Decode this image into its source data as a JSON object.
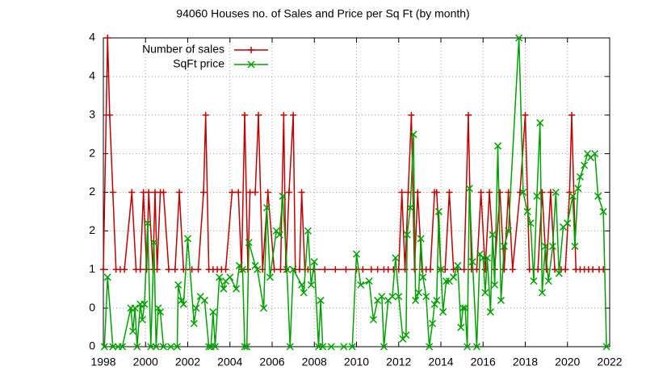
{
  "chart_data": {
    "type": "line",
    "title": "94060 Houses no. of Sales and Price per Sq Ft (by month)",
    "legend": "top-left",
    "grid": true,
    "xlim": [
      1998,
      2022
    ],
    "xticks": [
      1998,
      2000,
      2002,
      2004,
      2006,
      2008,
      2010,
      2012,
      2014,
      2016,
      2018,
      2020,
      2022
    ],
    "ylim": [
      0,
      4
    ],
    "yticks": [
      0,
      {
        "value": 0.5,
        "label": "0"
      },
      1,
      {
        "value": 1.5,
        "label": "2"
      },
      2,
      {
        "value": 2.5,
        "label": "2"
      },
      3,
      {
        "value": 3.5,
        "label": "4"
      },
      4
    ],
    "series": [
      {
        "name": "Number of sales",
        "color": "#c00000",
        "marker": "plus",
        "x": [
          1998.0,
          1998.2,
          1998.3,
          1998.45,
          1998.6,
          1998.8,
          1999.0,
          1999.35,
          1999.55,
          1999.75,
          1999.9,
          2000.05,
          2000.15,
          2000.35,
          2000.45,
          2000.55,
          2000.7,
          2000.85,
          2001.1,
          2001.4,
          2001.6,
          2001.8,
          2002.2,
          2002.5,
          2002.75,
          2002.85,
          2003.0,
          2003.2,
          2003.4,
          2003.6,
          2003.8,
          2004.1,
          2004.4,
          2004.55,
          2004.7,
          2004.85,
          2004.95,
          2005.2,
          2005.35,
          2005.55,
          2005.8,
          2006.1,
          2006.4,
          2006.55,
          2006.65,
          2006.8,
          2007.0,
          2007.1,
          2007.3,
          2007.4,
          2007.55,
          2007.7,
          2008.0,
          2008.5,
          2009.0,
          2009.5,
          2010.0,
          2010.3,
          2010.7,
          2011.0,
          2011.3,
          2011.5,
          2011.75,
          2012.0,
          2012.15,
          2012.3,
          2012.45,
          2012.6,
          2012.75,
          2012.9,
          2013.1,
          2013.3,
          2013.5,
          2013.7,
          2013.8,
          2014.0,
          2014.2,
          2014.4,
          2014.6,
          2014.8,
          2015.1,
          2015.3,
          2015.45,
          2015.7,
          2015.9,
          2016.1,
          2016.3,
          2016.55,
          2016.8,
          2017.0,
          2017.2,
          2017.4,
          2017.75,
          2018.0,
          2018.2,
          2018.4,
          2018.6,
          2018.8,
          2019.0,
          2019.2,
          2019.4,
          2019.7,
          2019.9,
          2020.1,
          2020.2,
          2020.4,
          2020.6,
          2020.8,
          2021.0,
          2021.2,
          2021.5,
          2021.7
        ],
        "values": [
          1,
          4,
          3,
          2,
          1,
          1,
          1,
          2,
          1,
          1,
          2,
          1,
          2,
          1,
          2,
          1,
          2,
          2,
          1,
          1,
          2,
          1,
          1,
          1,
          2,
          3,
          1,
          1,
          1,
          1,
          1,
          2,
          2,
          1,
          3,
          1,
          2,
          2,
          3,
          1,
          2,
          1,
          1,
          3,
          1,
          2,
          3,
          1,
          1,
          2,
          1,
          1,
          1,
          1,
          1,
          1,
          1,
          1,
          1,
          1,
          1,
          1,
          1,
          1,
          2,
          1,
          2,
          3,
          1,
          2,
          1,
          1,
          1,
          2,
          2,
          1,
          1,
          2,
          1,
          1,
          1,
          3,
          1,
          1,
          2,
          1,
          2,
          1,
          2,
          1,
          2,
          1,
          2,
          3,
          1,
          1,
          1,
          2,
          1,
          2,
          1,
          1,
          1,
          2,
          3,
          1,
          1,
          1,
          1,
          1,
          1,
          1
        ]
      },
      {
        "name": "SqFt price",
        "color": "#00a000",
        "marker": "cross",
        "x": [
          1998.05,
          1998.2,
          1998.45,
          1998.7,
          1998.9,
          1999.3,
          1999.4,
          1999.5,
          1999.6,
          1999.75,
          1999.85,
          1999.95,
          2000.1,
          2000.25,
          2000.4,
          2000.5,
          2000.6,
          2000.7,
          2000.85,
          2001.2,
          2001.5,
          2001.55,
          2001.7,
          2001.8,
          2002.0,
          2002.3,
          2002.4,
          2002.6,
          2002.8,
          2003.0,
          2003.1,
          2003.2,
          2003.3,
          2003.5,
          2003.7,
          2003.8,
          2004.0,
          2004.3,
          2004.45,
          2004.6,
          2004.7,
          2004.8,
          2004.9,
          2005.2,
          2005.3,
          2005.6,
          2005.75,
          2005.9,
          2006.2,
          2006.35,
          2006.5,
          2006.7,
          2006.85,
          2007.0,
          2007.4,
          2007.5,
          2007.7,
          2007.85,
          2008.0,
          2008.2,
          2008.3,
          2008.4,
          2008.8,
          2009.4,
          2009.8,
          2010.0,
          2010.2,
          2010.6,
          2010.8,
          2011.0,
          2011.2,
          2011.3,
          2011.5,
          2011.7,
          2011.85,
          2012.0,
          2012.2,
          2012.35,
          2012.4,
          2012.55,
          2012.7,
          2012.8,
          2012.95,
          2013.05,
          2013.15,
          2013.3,
          2013.45,
          2013.6,
          2013.7,
          2013.8,
          2013.9,
          2014.0,
          2014.1,
          2014.25,
          2014.4,
          2014.6,
          2014.8,
          2014.95,
          2015.05,
          2015.15,
          2015.25,
          2015.35,
          2015.5,
          2015.7,
          2015.85,
          2016.0,
          2016.1,
          2016.2,
          2016.35,
          2016.45,
          2016.55,
          2016.7,
          2016.85,
          2017.0,
          2017.2,
          2017.7,
          2017.9,
          2018.1,
          2018.25,
          2018.4,
          2018.55,
          2018.7,
          2018.8,
          2018.95,
          2019.1,
          2019.3,
          2019.45,
          2019.6,
          2019.8,
          2020.0,
          2020.25,
          2020.35,
          2020.5,
          2020.6,
          2020.8,
          2020.95,
          2021.1,
          2021.3,
          2021.45,
          2021.7,
          2021.85
        ],
        "values": [
          0,
          0.9,
          0,
          0,
          0,
          0.5,
          0.2,
          0.5,
          0,
          0.55,
          0.35,
          0.55,
          1.6,
          0,
          1.35,
          0,
          0.5,
          0.45,
          0,
          0,
          0,
          0.8,
          0.6,
          0.55,
          1.4,
          0.3,
          0.5,
          0.65,
          0.6,
          0,
          0,
          0.45,
          0,
          0.9,
          0.75,
          0.85,
          0.9,
          0.75,
          1.05,
          1.0,
          0,
          0,
          1.35,
          1.05,
          1.0,
          0.5,
          1.8,
          0.9,
          1.5,
          1.45,
          1.95,
          1.0,
          0,
          1.0,
          0.8,
          0.7,
          1.5,
          0.8,
          1.1,
          0,
          0.6,
          0,
          0,
          0,
          0,
          1.2,
          0.8,
          0.85,
          0.35,
          0.6,
          0.65,
          0,
          0.6,
          0.65,
          1.15,
          0.65,
          0.1,
          0.15,
          1.45,
          1.8,
          2.75,
          0.6,
          0.7,
          1.4,
          0.9,
          0.65,
          0,
          0.3,
          0.55,
          0.6,
          1.75,
          1.0,
          0.45,
          0.85,
          0.85,
          0.9,
          1.05,
          0.25,
          0.5,
          0.5,
          0,
          2.05,
          1.1,
          0,
          1.2,
          1.15,
          0.7,
          1.15,
          0.45,
          1.45,
          0.8,
          2.6,
          0.6,
          1.3,
          1.5,
          4.0,
          2.0,
          1.75,
          1.6,
          0.85,
          1.95,
          2.9,
          0.7,
          1.3,
          0.85,
          1.3,
          2.0,
          0.95,
          1.55,
          1.6,
          1.95,
          1.3,
          2.05,
          2.2,
          2.35,
          2.5,
          2.45,
          2.5,
          1.95,
          1.75,
          0
        ]
      }
    ]
  }
}
